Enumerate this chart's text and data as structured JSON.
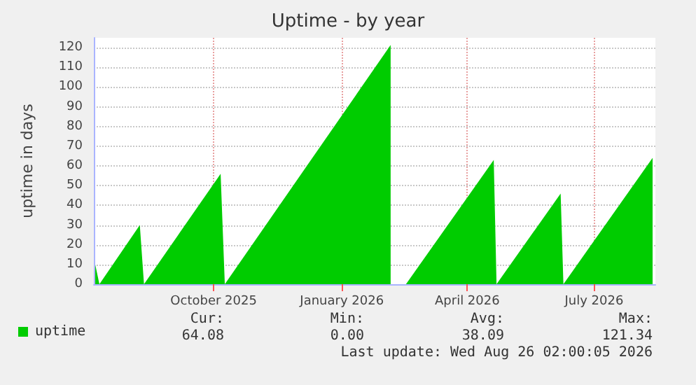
{
  "chart_data": {
    "type": "area",
    "title": "Uptime - by year",
    "ylabel": "uptime in days",
    "x": [
      "2025-07-22",
      "2025-07-25",
      "2025-08-23",
      "2025-08-26",
      "2025-10-20",
      "2025-10-23",
      "2026-02-19",
      "2026-02-24",
      "2026-03-02",
      "2026-05-04",
      "2026-05-06",
      "2026-06-21",
      "2026-06-23",
      "2026-08-26"
    ],
    "series": [
      {
        "name": "uptime",
        "color": "#00cc00",
        "values": [
          10,
          0,
          30,
          0,
          56,
          0,
          121.34,
          null,
          0,
          63,
          0,
          46,
          0,
          64.08
        ]
      }
    ],
    "xlim": [
      "2025-07-21",
      "2026-08-28"
    ],
    "xticks": [
      {
        "value": "2025-10-15",
        "label": "October 2025"
      },
      {
        "value": "2026-01-15",
        "label": "January 2026"
      },
      {
        "value": "2026-04-15",
        "label": "April 2026"
      },
      {
        "value": "2026-07-15",
        "label": "July 2026"
      }
    ],
    "ylim": [
      0,
      125
    ],
    "yticks": [
      0,
      10,
      20,
      30,
      40,
      50,
      60,
      70,
      80,
      90,
      100,
      110,
      120
    ],
    "grid": true,
    "legend": "bottom left",
    "annotations": [
      "Cur:",
      "Min:",
      "Avg:",
      "Max:",
      "64.08",
      "0.00",
      "38.09",
      "121.34",
      "Last update: Wed Aug 26 02:00:05 2026"
    ]
  }
}
